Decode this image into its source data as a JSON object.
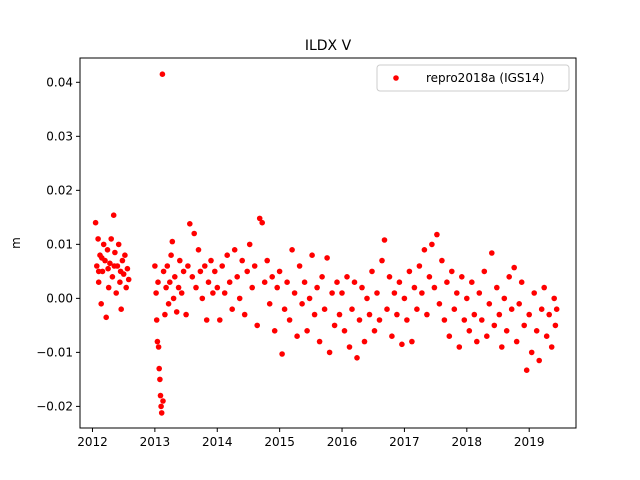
{
  "chart_data": {
    "type": "scatter",
    "title": "ILDX V",
    "xlabel": "",
    "ylabel": "m",
    "xlim": [
      2011.8,
      2019.75
    ],
    "ylim": [
      -0.024,
      0.0445
    ],
    "xticks": [
      2012,
      2013,
      2014,
      2015,
      2016,
      2017,
      2018,
      2019
    ],
    "xtick_labels": [
      "2012",
      "2013",
      "2014",
      "2015",
      "2016",
      "2017",
      "2018",
      "2019"
    ],
    "yticks": [
      -0.02,
      -0.01,
      0.0,
      0.01,
      0.02,
      0.03,
      0.04
    ],
    "ytick_labels": [
      "−0.02",
      "−0.01",
      "0.00",
      "0.01",
      "0.02",
      "0.03",
      "0.04"
    ],
    "grid": false,
    "legend": {
      "position": "upper right"
    },
    "series": [
      {
        "name": "repro2018a (IGS14)",
        "color": "#ff0000",
        "marker": "o",
        "points": [
          [
            2012.05,
            0.014
          ],
          [
            2012.07,
            0.006
          ],
          [
            2012.09,
            0.011
          ],
          [
            2012.1,
            0.003
          ],
          [
            2012.12,
            0.008
          ],
          [
            2012.14,
            -0.001
          ],
          [
            2012.16,
            0.005
          ],
          [
            2012.18,
            0.01
          ],
          [
            2012.2,
            0.007
          ],
          [
            2012.22,
            -0.0035
          ],
          [
            2012.24,
            0.009
          ],
          [
            2012.26,
            0.002
          ],
          [
            2012.28,
            0.0065
          ],
          [
            2012.3,
            0.011
          ],
          [
            2012.32,
            0.004
          ],
          [
            2012.34,
            0.0154
          ],
          [
            2012.36,
            0.0085
          ],
          [
            2012.38,
            0.001
          ],
          [
            2012.4,
            0.006
          ],
          [
            2012.42,
            0.01
          ],
          [
            2012.44,
            0.003
          ],
          [
            2012.46,
            -0.002
          ],
          [
            2012.48,
            0.007
          ],
          [
            2012.5,
            0.0045
          ],
          [
            2012.52,
            0.008
          ],
          [
            2012.54,
            0.002
          ],
          [
            2012.56,
            0.0055
          ],
          [
            2012.58,
            0.0035
          ],
          [
            2012.1,
            0.005
          ],
          [
            2012.15,
            0.0075
          ],
          [
            2012.25,
            0.0055
          ],
          [
            2012.35,
            0.006
          ],
          [
            2012.45,
            0.005
          ],
          [
            2013.0,
            0.006
          ],
          [
            2013.02,
            0.001
          ],
          [
            2013.03,
            -0.004
          ],
          [
            2013.04,
            -0.008
          ],
          [
            2013.05,
            0.003
          ],
          [
            2013.06,
            -0.009
          ],
          [
            2013.07,
            -0.013
          ],
          [
            2013.08,
            -0.015
          ],
          [
            2013.09,
            -0.018
          ],
          [
            2013.1,
            -0.02
          ],
          [
            2013.11,
            -0.0212
          ],
          [
            2013.12,
            0.0415
          ],
          [
            2013.13,
            -0.019
          ],
          [
            2013.14,
            0.005
          ],
          [
            2013.16,
            -0.003
          ],
          [
            2013.18,
            0.002
          ],
          [
            2013.2,
            0.006
          ],
          [
            2013.22,
            -0.001
          ],
          [
            2013.24,
            0.003
          ],
          [
            2013.26,
            0.008
          ],
          [
            2013.28,
            0.0105
          ],
          [
            2013.3,
            0.0
          ],
          [
            2013.32,
            0.004
          ],
          [
            2013.35,
            -0.0025
          ],
          [
            2013.38,
            0.002
          ],
          [
            2013.4,
            0.007
          ],
          [
            2013.43,
            0.001
          ],
          [
            2013.46,
            0.005
          ],
          [
            2013.5,
            -0.003
          ],
          [
            2013.53,
            0.006
          ],
          [
            2013.56,
            0.0138
          ],
          [
            2013.6,
            0.004
          ],
          [
            2013.63,
            0.012
          ],
          [
            2013.66,
            0.002
          ],
          [
            2013.7,
            0.009
          ],
          [
            2013.73,
            0.005
          ],
          [
            2013.76,
            0.0
          ],
          [
            2013.8,
            0.006
          ],
          [
            2013.83,
            -0.004
          ],
          [
            2013.86,
            0.003
          ],
          [
            2013.9,
            0.007
          ],
          [
            2013.93,
            0.001
          ],
          [
            2013.96,
            0.005
          ],
          [
            2014.0,
            0.002
          ],
          [
            2014.04,
            -0.004
          ],
          [
            2014.08,
            0.006
          ],
          [
            2014.12,
            0.001
          ],
          [
            2014.16,
            0.008
          ],
          [
            2014.2,
            0.003
          ],
          [
            2014.24,
            -0.002
          ],
          [
            2014.28,
            0.009
          ],
          [
            2014.32,
            0.004
          ],
          [
            2014.36,
            0.0
          ],
          [
            2014.4,
            0.007
          ],
          [
            2014.44,
            -0.003
          ],
          [
            2014.48,
            0.005
          ],
          [
            2014.52,
            0.01
          ],
          [
            2014.56,
            0.002
          ],
          [
            2014.6,
            0.006
          ],
          [
            2014.64,
            -0.005
          ],
          [
            2014.68,
            0.0148
          ],
          [
            2014.72,
            0.014
          ],
          [
            2014.76,
            0.003
          ],
          [
            2014.8,
            0.007
          ],
          [
            2014.84,
            -0.001
          ],
          [
            2014.88,
            0.004
          ],
          [
            2014.92,
            -0.006
          ],
          [
            2014.96,
            0.002
          ],
          [
            2015.0,
            0.005
          ],
          [
            2015.04,
            -0.0103
          ],
          [
            2015.08,
            -0.002
          ],
          [
            2015.12,
            0.003
          ],
          [
            2015.16,
            -0.004
          ],
          [
            2015.2,
            0.009
          ],
          [
            2015.24,
            0.001
          ],
          [
            2015.28,
            -0.007
          ],
          [
            2015.32,
            0.006
          ],
          [
            2015.36,
            -0.001
          ],
          [
            2015.4,
            0.003
          ],
          [
            2015.44,
            -0.006
          ],
          [
            2015.48,
            0.0
          ],
          [
            2015.52,
            0.008
          ],
          [
            2015.56,
            -0.003
          ],
          [
            2015.6,
            0.002
          ],
          [
            2015.64,
            -0.008
          ],
          [
            2015.68,
            0.004
          ],
          [
            2015.72,
            -0.002
          ],
          [
            2015.76,
            0.0075
          ],
          [
            2015.8,
            -0.01
          ],
          [
            2015.84,
            0.001
          ],
          [
            2015.88,
            -0.005
          ],
          [
            2015.92,
            0.003
          ],
          [
            2015.96,
            -0.003
          ],
          [
            2016.0,
            0.001
          ],
          [
            2016.04,
            -0.006
          ],
          [
            2016.08,
            0.004
          ],
          [
            2016.12,
            -0.009
          ],
          [
            2016.16,
            -0.002
          ],
          [
            2016.2,
            0.003
          ],
          [
            2016.24,
            -0.011
          ],
          [
            2016.28,
            -0.004
          ],
          [
            2016.32,
            0.002
          ],
          [
            2016.36,
            -0.008
          ],
          [
            2016.4,
            0.0
          ],
          [
            2016.44,
            -0.003
          ],
          [
            2016.48,
            0.005
          ],
          [
            2016.52,
            -0.006
          ],
          [
            2016.56,
            0.001
          ],
          [
            2016.6,
            -0.004
          ],
          [
            2016.64,
            0.007
          ],
          [
            2016.68,
            0.0108
          ],
          [
            2016.72,
            -0.002
          ],
          [
            2016.76,
            0.004
          ],
          [
            2016.8,
            -0.007
          ],
          [
            2016.84,
            0.001
          ],
          [
            2016.88,
            -0.003
          ],
          [
            2016.92,
            0.003
          ],
          [
            2016.96,
            -0.0085
          ],
          [
            2017.0,
            0.0
          ],
          [
            2017.04,
            -0.004
          ],
          [
            2017.08,
            0.005
          ],
          [
            2017.12,
            -0.008
          ],
          [
            2017.16,
            0.002
          ],
          [
            2017.2,
            -0.002
          ],
          [
            2017.24,
            0.006
          ],
          [
            2017.28,
            0.001
          ],
          [
            2017.32,
            0.009
          ],
          [
            2017.36,
            -0.003
          ],
          [
            2017.4,
            0.004
          ],
          [
            2017.44,
            0.01
          ],
          [
            2017.48,
            0.002
          ],
          [
            2017.52,
            0.0118
          ],
          [
            2017.56,
            -0.001
          ],
          [
            2017.6,
            0.007
          ],
          [
            2017.64,
            -0.004
          ],
          [
            2017.68,
            0.003
          ],
          [
            2017.72,
            -0.007
          ],
          [
            2017.76,
            0.005
          ],
          [
            2017.8,
            -0.002
          ],
          [
            2017.84,
            0.001
          ],
          [
            2017.88,
            -0.009
          ],
          [
            2017.92,
            0.004
          ],
          [
            2017.96,
            -0.004
          ],
          [
            2018.0,
            0.0
          ],
          [
            2018.04,
            -0.006
          ],
          [
            2018.08,
            0.003
          ],
          [
            2018.12,
            -0.003
          ],
          [
            2018.16,
            -0.008
          ],
          [
            2018.2,
            0.001
          ],
          [
            2018.24,
            -0.004
          ],
          [
            2018.28,
            0.005
          ],
          [
            2018.32,
            -0.007
          ],
          [
            2018.36,
            -0.001
          ],
          [
            2018.4,
            0.0084
          ],
          [
            2018.44,
            -0.005
          ],
          [
            2018.48,
            0.002
          ],
          [
            2018.52,
            -0.003
          ],
          [
            2018.56,
            -0.009
          ],
          [
            2018.6,
            0.0
          ],
          [
            2018.64,
            -0.006
          ],
          [
            2018.68,
            0.004
          ],
          [
            2018.72,
            -0.002
          ],
          [
            2018.76,
            0.0057
          ],
          [
            2018.8,
            -0.008
          ],
          [
            2018.84,
            -0.001
          ],
          [
            2018.88,
            0.003
          ],
          [
            2018.92,
            -0.005
          ],
          [
            2018.96,
            -0.0133
          ],
          [
            2019.0,
            -0.003
          ],
          [
            2019.04,
            -0.01
          ],
          [
            2019.08,
            0.001
          ],
          [
            2019.12,
            -0.006
          ],
          [
            2019.16,
            -0.0115
          ],
          [
            2019.2,
            -0.002
          ],
          [
            2019.24,
            0.002
          ],
          [
            2019.28,
            -0.007
          ],
          [
            2019.32,
            -0.003
          ],
          [
            2019.36,
            -0.009
          ],
          [
            2019.4,
            0.0
          ],
          [
            2019.42,
            -0.005
          ],
          [
            2019.44,
            -0.002
          ]
        ]
      }
    ]
  }
}
